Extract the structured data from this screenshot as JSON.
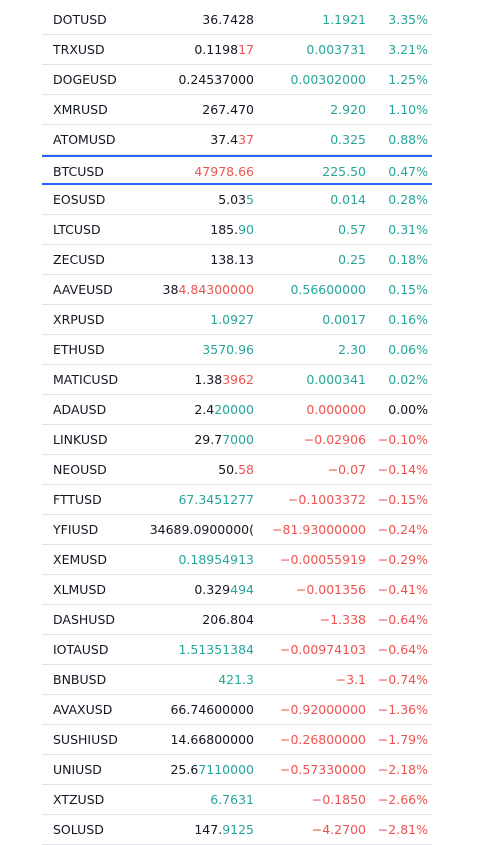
{
  "selected_row": 5,
  "rows": [
    {
      "symbol": "DOTUSD",
      "last": [
        {
          "text": "36.7428"
        }
      ],
      "change": "1.1921",
      "change_pct": "3.35%",
      "tone": "up"
    },
    {
      "symbol": "TRXUSD",
      "last": [
        {
          "text": "0.1198"
        },
        {
          "text": "17",
          "tone": "down"
        }
      ],
      "change": "0.003731",
      "change_pct": "3.21%",
      "tone": "up"
    },
    {
      "symbol": "DOGEUSD",
      "last": [
        {
          "text": "0.24537000"
        }
      ],
      "change": "0.00302000",
      "change_pct": "1.25%",
      "tone": "up"
    },
    {
      "symbol": "XMRUSD",
      "last": [
        {
          "text": "267.470"
        }
      ],
      "change": "2.920",
      "change_pct": "1.10%",
      "tone": "up"
    },
    {
      "symbol": "ATOMUSD",
      "last": [
        {
          "text": "37.4"
        },
        {
          "text": "37",
          "tone": "down"
        }
      ],
      "change": "0.325",
      "change_pct": "0.88%",
      "tone": "up"
    },
    {
      "symbol": "BTCUSD",
      "last": [
        {
          "text": "47978.66",
          "tone": "down"
        }
      ],
      "change": "225.50",
      "change_pct": "0.47%",
      "tone": "up"
    },
    {
      "symbol": "EOSUSD",
      "last": [
        {
          "text": "5.03"
        },
        {
          "text": "5",
          "tone": "up"
        }
      ],
      "change": "0.014",
      "change_pct": "0.28%",
      "tone": "up"
    },
    {
      "symbol": "LTCUSD",
      "last": [
        {
          "text": "185."
        },
        {
          "text": "90",
          "tone": "up"
        }
      ],
      "change": "0.57",
      "change_pct": "0.31%",
      "tone": "up"
    },
    {
      "symbol": "ZECUSD",
      "last": [
        {
          "text": "138.13"
        }
      ],
      "change": "0.25",
      "change_pct": "0.18%",
      "tone": "up"
    },
    {
      "symbol": "AAVEUSD",
      "last": [
        {
          "text": "38"
        },
        {
          "text": "4.84300000",
          "tone": "down"
        }
      ],
      "change": "0.56600000",
      "change_pct": "0.15%",
      "tone": "up"
    },
    {
      "symbol": "XRPUSD",
      "last": [
        {
          "text": "1.0927",
          "tone": "up"
        }
      ],
      "change": "0.0017",
      "change_pct": "0.16%",
      "tone": "up"
    },
    {
      "symbol": "ETHUSD",
      "last": [
        {
          "text": "3570.96",
          "tone": "up"
        }
      ],
      "change": "2.30",
      "change_pct": "0.06%",
      "tone": "up"
    },
    {
      "symbol": "MATICUSD",
      "last": [
        {
          "text": "1.38"
        },
        {
          "text": "3962",
          "tone": "down"
        }
      ],
      "change": "0.000341",
      "change_pct": "0.02%",
      "tone": "up"
    },
    {
      "symbol": "ADAUSD",
      "last": [
        {
          "text": "2.4"
        },
        {
          "text": "20000",
          "tone": "up"
        }
      ],
      "change": "0.000000",
      "change_pct": "0.00%",
      "tone": "down",
      "pct_tone": "flat"
    },
    {
      "symbol": "LINKUSD",
      "last": [
        {
          "text": "29.7"
        },
        {
          "text": "7000",
          "tone": "up"
        }
      ],
      "change": "−0.02906",
      "change_pct": "−0.10%",
      "tone": "down"
    },
    {
      "symbol": "NEOUSD",
      "last": [
        {
          "text": "50."
        },
        {
          "text": "58",
          "tone": "down"
        }
      ],
      "change": "−0.07",
      "change_pct": "−0.14%",
      "tone": "down"
    },
    {
      "symbol": "FTTUSD",
      "last": [
        {
          "text": "67.3451277",
          "tone": "up"
        }
      ],
      "change": "−0.1003372",
      "change_pct": "−0.15%",
      "tone": "down"
    },
    {
      "symbol": "YFIUSD",
      "last": [
        {
          "text": "34689.0900000("
        }
      ],
      "change": "−81.93000000",
      "change_pct": "−0.24%",
      "tone": "down"
    },
    {
      "symbol": "XEMUSD",
      "last": [
        {
          "text": "0.18954913",
          "tone": "up"
        }
      ],
      "change": "−0.00055919",
      "change_pct": "−0.29%",
      "tone": "down"
    },
    {
      "symbol": "XLMUSD",
      "last": [
        {
          "text": "0.329"
        },
        {
          "text": "494",
          "tone": "up"
        }
      ],
      "change": "−0.001356",
      "change_pct": "−0.41%",
      "tone": "down"
    },
    {
      "symbol": "DASHUSD",
      "last": [
        {
          "text": "206.804"
        }
      ],
      "change": "−1.338",
      "change_pct": "−0.64%",
      "tone": "down"
    },
    {
      "symbol": "IOTAUSD",
      "last": [
        {
          "text": "1.51351384",
          "tone": "up"
        }
      ],
      "change": "−0.00974103",
      "change_pct": "−0.64%",
      "tone": "down"
    },
    {
      "symbol": "BNBUSD",
      "last": [
        {
          "text": "421.3",
          "tone": "up"
        }
      ],
      "change": "−3.1",
      "change_pct": "−0.74%",
      "tone": "down"
    },
    {
      "symbol": "AVAXUSD",
      "last": [
        {
          "text": "66.74600000"
        }
      ],
      "change": "−0.92000000",
      "change_pct": "−1.36%",
      "tone": "down"
    },
    {
      "symbol": "SUSHIUSD",
      "last": [
        {
          "text": "14.66800000"
        }
      ],
      "change": "−0.26800000",
      "change_pct": "−1.79%",
      "tone": "down"
    },
    {
      "symbol": "UNIUSD",
      "last": [
        {
          "text": "25.6"
        },
        {
          "text": "7110000",
          "tone": "up"
        }
      ],
      "change": "−0.57330000",
      "change_pct": "−2.18%",
      "tone": "down"
    },
    {
      "symbol": "XTZUSD",
      "last": [
        {
          "text": "6.7631",
          "tone": "up"
        }
      ],
      "change": "−0.1850",
      "change_pct": "−2.66%",
      "tone": "down"
    },
    {
      "symbol": "SOLUSD",
      "last": [
        {
          "text": "147."
        },
        {
          "text": "9125",
          "tone": "up"
        }
      ],
      "change": "−4.2700",
      "change_pct": "−2.81%",
      "tone": "down"
    }
  ]
}
